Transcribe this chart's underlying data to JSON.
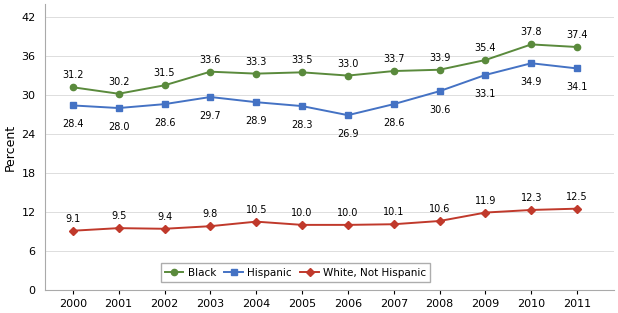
{
  "years": [
    2000,
    2001,
    2002,
    2003,
    2004,
    2005,
    2006,
    2007,
    2008,
    2009,
    2010,
    2011
  ],
  "black": [
    31.2,
    30.2,
    31.5,
    33.6,
    33.3,
    33.5,
    33.0,
    33.7,
    33.9,
    35.4,
    37.8,
    37.4
  ],
  "hispanic": [
    28.4,
    28.0,
    28.6,
    29.7,
    28.9,
    28.3,
    26.9,
    28.6,
    30.6,
    33.1,
    34.9,
    34.1
  ],
  "white": [
    9.1,
    9.5,
    9.4,
    9.8,
    10.5,
    10.0,
    10.0,
    10.1,
    10.6,
    11.9,
    12.3,
    12.5
  ],
  "black_color": "#5a8a3c",
  "hispanic_color": "#4472c4",
  "white_color": "#c0392b",
  "ylabel": "Percent",
  "ylim": [
    0,
    44
  ],
  "yticks": [
    0,
    6,
    12,
    18,
    24,
    30,
    36,
    42
  ],
  "legend_labels": [
    "Black",
    "Hispanic",
    "White, Not Hispanic"
  ],
  "annotation_fontsize": 7.0,
  "bg_color": "#ffffff",
  "xlim_left": 1999.4,
  "xlim_right": 2011.8
}
